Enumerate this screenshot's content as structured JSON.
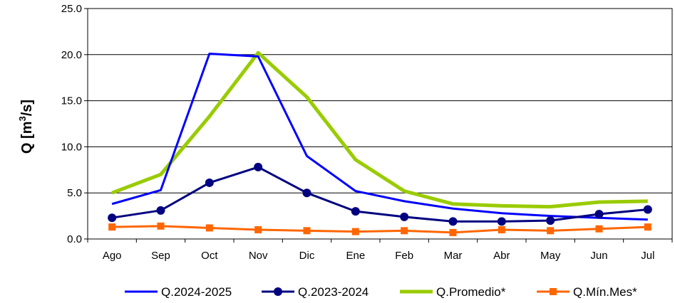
{
  "chart_data": {
    "type": "line",
    "ylabel_main": "Q [m",
    "ylabel_sup": "3",
    "ylabel_end": "/s]",
    "xlabel": "",
    "ylim": [
      0,
      25
    ],
    "yticks": [
      "0.0",
      "5.0",
      "10.0",
      "15.0",
      "20.0",
      "25.0"
    ],
    "grid": "horizontal",
    "legend_position": "bottom",
    "categories": [
      "Ago",
      "Sep",
      "Oct",
      "Nov",
      "Dic",
      "Ene",
      "Feb",
      "Mar",
      "Abr",
      "May",
      "Jun",
      "Jul"
    ],
    "series": [
      {
        "name": "Q.2024-2025",
        "color": "#0000ff",
        "marker": "none",
        "values": [
          3.8,
          5.3,
          20.1,
          19.8,
          9.0,
          5.2,
          4.1,
          3.3,
          2.8,
          2.5,
          2.3,
          2.1
        ]
      },
      {
        "name": "Q.2023-2024",
        "color": "#000080",
        "marker": "circle",
        "values": [
          2.3,
          3.1,
          6.1,
          7.8,
          5.0,
          3.0,
          2.4,
          1.9,
          1.9,
          2.0,
          2.7,
          3.2
        ]
      },
      {
        "name": "Q.Promedio*",
        "color": "#99cc00",
        "marker": "none",
        "values": [
          5.0,
          7.0,
          13.3,
          20.2,
          15.4,
          8.6,
          5.2,
          3.8,
          3.6,
          3.5,
          4.0,
          4.1
        ]
      },
      {
        "name": "Q.Mín.Mes*",
        "color": "#ff6600",
        "marker": "square",
        "values": [
          1.3,
          1.4,
          1.2,
          1.0,
          0.9,
          0.8,
          0.9,
          0.7,
          1.0,
          0.9,
          1.1,
          1.3
        ]
      }
    ]
  }
}
